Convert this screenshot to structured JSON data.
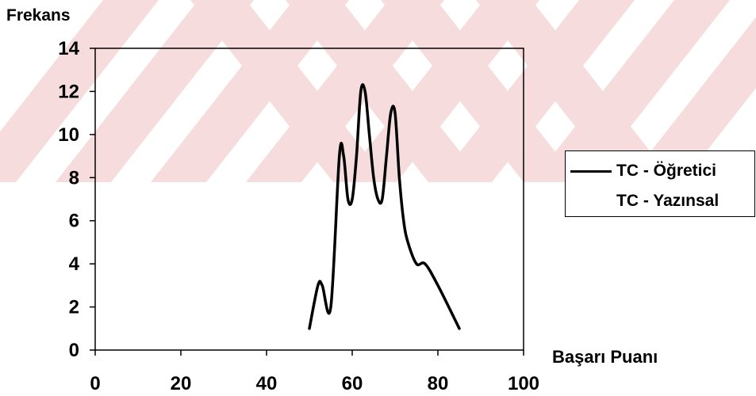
{
  "chart_data": {
    "type": "line",
    "ylabel": "Frekans",
    "xlabel": "Başarı Puanı",
    "xlim": [
      0,
      100
    ],
    "ylim": [
      0,
      14
    ],
    "xticks": [
      0,
      20,
      40,
      60,
      80,
      100
    ],
    "yticks": [
      0,
      2,
      4,
      6,
      8,
      10,
      12,
      14
    ],
    "grid": false,
    "legend_position": "right",
    "series": [
      {
        "name": "TC - Öğretici",
        "color": "#000000",
        "x": [
          50,
          52,
          53,
          55,
          57,
          58,
          59,
          60,
          61,
          62,
          63,
          64,
          65,
          66,
          67,
          68,
          69,
          70,
          71,
          72,
          73,
          75,
          77,
          80,
          85
        ],
        "y": [
          1,
          3,
          3,
          2,
          9,
          9,
          7,
          7,
          9,
          12,
          12,
          10,
          8,
          7,
          7,
          9,
          11,
          11,
          8,
          6,
          5,
          4,
          4,
          3,
          1
        ]
      },
      {
        "name": "TC - Yazınsal",
        "color": "none",
        "x": [],
        "y": []
      }
    ]
  }
}
